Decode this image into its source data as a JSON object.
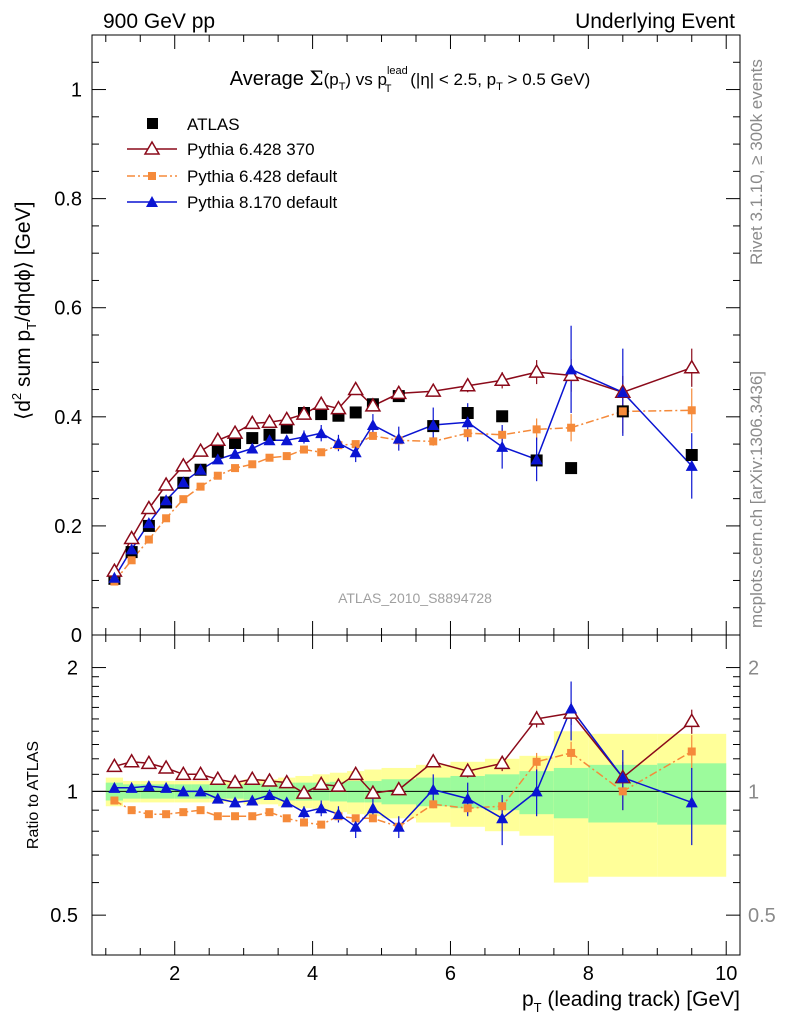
{
  "header": {
    "left": "900 GeV pp",
    "right": "Underlying Event"
  },
  "side_text": {
    "rivet": "Rivet 3.1.10, ≥ 300k events",
    "mcplots": "mcplots.cern.ch [arXiv:1306.3436]"
  },
  "chart_data": [
    {
      "type": "scatter",
      "title_parts": {
        "lead": "Average ",
        "sigma": "Σ",
        "mid1": "(p",
        "sub1": "T",
        "mid2": ") vs p",
        "sup": "lead",
        "sub2": "T",
        "tail1": " (|η| < 2.5, p",
        "sub3": "T",
        "tail2": " > 0.5 GeV)"
      },
      "ylabel_parts": {
        "a": "⟨d",
        "sup": "2",
        "b": " sum p",
        "sub": "T",
        "c": "/dηdϕ⟩ [GeV]"
      },
      "reference_label": "ATLAS_2010_S8894728",
      "xlim": [
        0.8,
        10.2
      ],
      "ylim": [
        0,
        1.1
      ],
      "yticks": [
        "0",
        "0.2",
        "0.4",
        "0.6",
        "0.8",
        "1"
      ],
      "legend_position": "top-left",
      "series": [
        {
          "name": "ATLAS",
          "marker": "square",
          "color": "#000000",
          "line": "none",
          "x": [
            1.125,
            1.375,
            1.625,
            1.875,
            2.125,
            2.375,
            2.625,
            2.875,
            3.125,
            3.375,
            3.625,
            3.875,
            4.125,
            4.375,
            4.625,
            4.875,
            5.25,
            5.75,
            6.25,
            6.75,
            7.25,
            7.75,
            8.5,
            9.5
          ],
          "y": [
            0.103,
            0.152,
            0.2,
            0.243,
            0.279,
            0.303,
            0.336,
            0.352,
            0.361,
            0.367,
            0.38,
            0.407,
            0.405,
            0.402,
            0.408,
            0.423,
            0.438,
            0.383,
            0.407,
            0.401,
            0.32,
            0.306,
            0.41,
            0.33
          ]
        },
        {
          "name": "Pythia 6.428 370",
          "marker": "open-triangle",
          "color": "#8b0a1a",
          "line": "solid",
          "x": [
            1.125,
            1.375,
            1.625,
            1.875,
            2.125,
            2.375,
            2.625,
            2.875,
            3.125,
            3.375,
            3.625,
            3.875,
            4.125,
            4.375,
            4.625,
            4.875,
            5.25,
            5.75,
            6.25,
            6.75,
            7.25,
            7.75,
            8.5,
            9.5
          ],
          "y": [
            0.117,
            0.177,
            0.232,
            0.275,
            0.31,
            0.337,
            0.357,
            0.37,
            0.388,
            0.39,
            0.395,
            0.405,
            0.423,
            0.415,
            0.45,
            0.42,
            0.443,
            0.447,
            0.457,
            0.467,
            0.482,
            0.476,
            0.445,
            0.49
          ],
          "yerr": [
            0,
            0,
            0,
            0,
            0,
            0,
            0,
            0,
            0,
            0,
            0,
            0,
            0,
            0,
            0,
            0,
            0.005,
            0.01,
            0.012,
            0.015,
            0.022,
            0.03,
            0.03,
            0.035
          ]
        },
        {
          "name": "Pythia 6.428 default",
          "marker": "filled-square-small",
          "color": "#f58a3a",
          "line": "dashdot",
          "x": [
            1.125,
            1.375,
            1.625,
            1.875,
            2.125,
            2.375,
            2.625,
            2.875,
            3.125,
            3.375,
            3.625,
            3.875,
            4.125,
            4.375,
            4.625,
            4.875,
            5.25,
            5.75,
            6.25,
            6.75,
            7.25,
            7.75,
            8.5,
            9.5
          ],
          "y": [
            0.098,
            0.137,
            0.175,
            0.214,
            0.249,
            0.272,
            0.292,
            0.306,
            0.313,
            0.325,
            0.328,
            0.34,
            0.335,
            0.348,
            0.35,
            0.365,
            0.357,
            0.355,
            0.37,
            0.367,
            0.377,
            0.38,
            0.41,
            0.412
          ],
          "yerr": [
            0,
            0,
            0,
            0,
            0,
            0,
            0,
            0,
            0,
            0,
            0,
            0,
            0,
            0,
            0,
            0,
            0.005,
            0.008,
            0.01,
            0.012,
            0.02,
            0.025,
            0.04,
            0.04
          ]
        },
        {
          "name": "Pythia 8.170 default",
          "marker": "filled-triangle",
          "color": "#0a14d2",
          "line": "solid",
          "x": [
            1.125,
            1.375,
            1.625,
            1.875,
            2.125,
            2.375,
            2.625,
            2.875,
            3.125,
            3.375,
            3.625,
            3.875,
            4.125,
            4.375,
            4.625,
            4.875,
            5.25,
            5.75,
            6.25,
            6.75,
            7.25,
            7.75,
            8.5,
            9.5
          ],
          "y": [
            0.105,
            0.157,
            0.205,
            0.247,
            0.28,
            0.303,
            0.322,
            0.332,
            0.342,
            0.357,
            0.357,
            0.363,
            0.37,
            0.352,
            0.335,
            0.385,
            0.36,
            0.385,
            0.39,
            0.345,
            0.322,
            0.487,
            0.445,
            0.31
          ],
          "yerr": [
            0,
            0,
            0,
            0,
            0,
            0,
            0,
            0,
            0,
            0,
            0,
            0.012,
            0.015,
            0.015,
            0.018,
            0.02,
            0.022,
            0.032,
            0.035,
            0.04,
            0.04,
            0.08,
            0.08,
            0.06
          ]
        }
      ]
    },
    {
      "type": "scatter",
      "ylabel": "Ratio to ATLAS",
      "xlabel_parts": {
        "a": "p",
        "sub": "T",
        "b": " (leading track) [GeV]"
      },
      "xlim": [
        0.8,
        10.2
      ],
      "ylim": [
        0.4,
        2.4
      ],
      "log_y": true,
      "xticks": [
        2,
        4,
        6,
        8,
        10
      ],
      "xtick_labels": [
        "2",
        "4",
        "6",
        "8",
        "10"
      ],
      "ytick_labels": [
        "0.5",
        "1",
        "2"
      ],
      "bands": {
        "green": "#9cfb9c",
        "yellow": "#ffff99",
        "edges": [
          1.0,
          1.25,
          1.5,
          1.75,
          2.0,
          2.25,
          2.5,
          2.75,
          3.0,
          3.25,
          3.5,
          3.75,
          4.0,
          4.25,
          4.5,
          4.75,
          5.0,
          5.5,
          6.0,
          6.5,
          7.0,
          7.5,
          8.0,
          9.0,
          10.0
        ],
        "green_halfwidth": [
          0.05,
          0.04,
          0.04,
          0.04,
          0.04,
          0.04,
          0.04,
          0.04,
          0.045,
          0.045,
          0.05,
          0.05,
          0.05,
          0.055,
          0.06,
          0.06,
          0.07,
          0.08,
          0.09,
          0.1,
          0.12,
          0.14,
          0.16,
          0.17
        ],
        "yellow_halfwidth": [
          0.08,
          0.06,
          0.06,
          0.06,
          0.06,
          0.06,
          0.06,
          0.06,
          0.07,
          0.07,
          0.08,
          0.09,
          0.1,
          0.11,
          0.12,
          0.13,
          0.14,
          0.16,
          0.18,
          0.2,
          0.22,
          0.4,
          0.38,
          0.38
        ]
      },
      "series": [
        {
          "name": "Pythia 6.428 370",
          "x": [
            1.125,
            1.375,
            1.625,
            1.875,
            2.125,
            2.375,
            2.625,
            2.875,
            3.125,
            3.375,
            3.625,
            3.875,
            4.125,
            4.375,
            4.625,
            4.875,
            5.25,
            5.75,
            6.25,
            6.75,
            7.25,
            7.75,
            8.5,
            9.5
          ],
          "y": [
            1.15,
            1.18,
            1.17,
            1.14,
            1.1,
            1.1,
            1.07,
            1.05,
            1.07,
            1.06,
            1.05,
            0.99,
            1.04,
            1.03,
            1.1,
            0.99,
            1.01,
            1.18,
            1.12,
            1.17,
            1.5,
            1.55,
            1.08,
            1.48
          ],
          "yerr": [
            0,
            0,
            0,
            0,
            0,
            0,
            0,
            0,
            0,
            0,
            0,
            0,
            0,
            0,
            0,
            0,
            0.02,
            0.03,
            0.04,
            0.05,
            0.07,
            0.1,
            0.1,
            0.1
          ]
        },
        {
          "name": "Pythia 6.428 default",
          "x": [
            1.125,
            1.375,
            1.625,
            1.875,
            2.125,
            2.375,
            2.625,
            2.875,
            3.125,
            3.375,
            3.625,
            3.875,
            4.125,
            4.375,
            4.625,
            4.875,
            5.25,
            5.75,
            6.25,
            6.75,
            7.25,
            7.75,
            8.5,
            9.5
          ],
          "y": [
            0.95,
            0.9,
            0.88,
            0.88,
            0.89,
            0.9,
            0.87,
            0.87,
            0.87,
            0.89,
            0.86,
            0.84,
            0.83,
            0.87,
            0.86,
            0.86,
            0.82,
            0.93,
            0.91,
            0.92,
            1.18,
            1.24,
            1.0,
            1.25
          ],
          "yerr": [
            0,
            0,
            0,
            0,
            0,
            0,
            0,
            0,
            0,
            0,
            0,
            0,
            0,
            0,
            0,
            0,
            0.02,
            0.02,
            0.03,
            0.03,
            0.06,
            0.08,
            0.1,
            0.12
          ]
        },
        {
          "name": "Pythia 8.170 default",
          "x": [
            1.125,
            1.375,
            1.625,
            1.875,
            2.125,
            2.375,
            2.625,
            2.875,
            3.125,
            3.375,
            3.625,
            3.875,
            4.125,
            4.375,
            4.625,
            4.875,
            5.25,
            5.75,
            6.25,
            6.75,
            7.25,
            7.75,
            8.5,
            9.5
          ],
          "y": [
            1.02,
            1.02,
            1.03,
            1.02,
            1.0,
            1.0,
            0.96,
            0.94,
            0.95,
            0.98,
            0.94,
            0.89,
            0.91,
            0.88,
            0.82,
            0.91,
            0.82,
            1.01,
            0.96,
            0.86,
            1.0,
            1.59,
            1.08,
            0.94
          ],
          "yerr": [
            0,
            0,
            0,
            0,
            0,
            0,
            0,
            0,
            0,
            0,
            0,
            0.03,
            0.04,
            0.04,
            0.05,
            0.05,
            0.05,
            0.09,
            0.09,
            0.12,
            0.13,
            0.26,
            0.18,
            0.2
          ]
        }
      ]
    }
  ]
}
